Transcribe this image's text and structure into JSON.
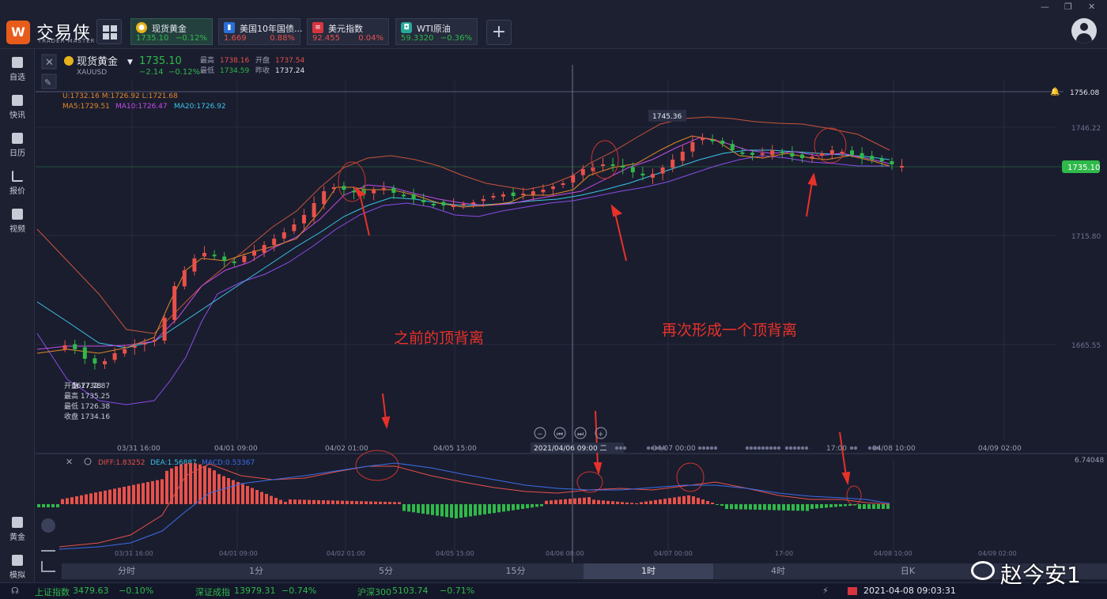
{
  "app": {
    "logo_text": "交易侠",
    "logo_sub": "TRADER MASTER",
    "logo_glyph": "W"
  },
  "window_controls": {
    "minimize": "—",
    "restore": "❐",
    "close": "✕"
  },
  "tabs": [
    {
      "name": "现货黄金",
      "price": "1735.10",
      "change": "−0.12%",
      "icon_color": "#e8b21b",
      "direction": "down",
      "icon": "gold-coin-icon"
    },
    {
      "name": "美国10年国债...",
      "price": "1.669",
      "change": "0.88%",
      "icon_color": "#2a6ed8",
      "direction": "up",
      "icon": "bar-chart-icon"
    },
    {
      "name": "美元指数",
      "price": "92.455",
      "change": "0.04%",
      "icon_color": "#d8343f",
      "direction": "up",
      "icon": "us-flag-icon"
    },
    {
      "name": "WTI原油",
      "price": "59.3320",
      "change": "−0.36%",
      "icon_color": "#27a89a",
      "direction": "down",
      "icon": "oil-icon"
    }
  ],
  "sidebar": [
    {
      "label": "自选",
      "icon": "bookmark-icon"
    },
    {
      "label": "快讯",
      "icon": "news-icon"
    },
    {
      "label": "日历",
      "icon": "calendar-icon"
    },
    {
      "label": "报价",
      "icon": "quote-chart-icon"
    },
    {
      "label": "视频",
      "icon": "video-icon"
    },
    {
      "label": "黄金",
      "icon": "gold-icon"
    },
    {
      "label": "模拟",
      "icon": "simulate-icon"
    }
  ],
  "instrument": {
    "name": "现货黄金",
    "code": "XAUUSD",
    "price": "1735.10",
    "change": "−2.14",
    "change_pct": "−0.12%",
    "high_label": "最高",
    "high": "1738.16",
    "open_label": "开盘",
    "open": "1737.54",
    "low_label": "最低",
    "low": "1734.59",
    "prev_label": "昨收",
    "prev": "1737.24"
  },
  "indicators": {
    "boll": "U:1732.16  M:1726.92  L:1721.68",
    "ma5": "MA5:1729.51",
    "ma10": "MA10:1726.47",
    "ma20": "MA20:1726.92"
  },
  "price_axis": [
    "1756.08",
    "1746.22",
    "1735.10",
    "1715.80",
    "1665.55"
  ],
  "annotations": {
    "peak_label": "1745.36",
    "low_label": "1677.78",
    "text_prev": "之前的顶背离",
    "text_again": "再次形成一个顶背离",
    "ohlc_box": [
      "开盘 1732.87",
      "最高 1735.25",
      "最低 1726.38",
      "收盘 1734.16"
    ]
  },
  "time_axis": [
    "03/31 16:00",
    "04/01 09:00",
    "04/02 01:00",
    "04/05 15:00",
    "2021/04/06 09:00 二",
    "04/07 00:00",
    "17:00",
    "04/08 10:00",
    "04/09 02:00"
  ],
  "macd": {
    "diff": "DIFF:1.83252",
    "dea": "DEA:1.56887",
    "macd": "MACD:0.53367",
    "axis": "6.74048"
  },
  "macd_time_axis": [
    "03/31 16:00",
    "04/01 09:00",
    "04/02 01:00",
    "04/05 15:00",
    "04/06 08:00",
    "04/07 00:00",
    "17:00",
    "04/08 10:00",
    "04/09 02:00"
  ],
  "periods": [
    "分时",
    "1分",
    "5分",
    "15分",
    "1时",
    "4时",
    "日K"
  ],
  "active_period": "1时",
  "status": {
    "idx1_name": "上证指数",
    "idx1_val": "3479.63",
    "idx1_chg": "−0.10%",
    "idx2_name": "深证成指",
    "idx2_val": "13979.31",
    "idx2_chg": "−0.74%",
    "idx3_name": "沪深300",
    "idx3_val": "5103.74",
    "idx3_chg": "−0.71%",
    "datetime": "2021-04-08 09:03:31"
  },
  "watermark": "赵今安1",
  "colors": {
    "up": "#e8514a",
    "down": "#2fb94a",
    "ma5": "#e0882a",
    "ma10": "#c54ce8",
    "ma20": "#3ac4e8",
    "boll_u": "#c8553b",
    "boll_l": "#8a4ce8",
    "accent": "#e8312a"
  }
}
